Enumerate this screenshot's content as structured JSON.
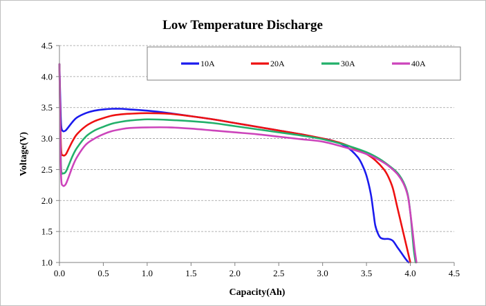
{
  "chart_data": {
    "type": "line",
    "title": "Low Temperature Discharge",
    "xlabel": "Capacity(Ah)",
    "ylabel": "Voltage(V)",
    "xlim": [
      0,
      4.5
    ],
    "ylim": [
      1.0,
      4.5
    ],
    "xticks": [
      "0.0",
      "0.5",
      "1.0",
      "1.5",
      "2.0",
      "2.5",
      "3.0",
      "3.5",
      "4.0",
      "4.5"
    ],
    "yticks": [
      "1.0",
      "1.5",
      "2.0",
      "2.5",
      "3.0",
      "3.5",
      "4.0",
      "4.5"
    ],
    "grid": "horizontal dashed",
    "legend_position": "top",
    "series": [
      {
        "name": "10A",
        "color": "#1a1aee",
        "points": [
          [
            0.0,
            4.2
          ],
          [
            0.01,
            3.6
          ],
          [
            0.02,
            3.2
          ],
          [
            0.04,
            3.12
          ],
          [
            0.07,
            3.13
          ],
          [
            0.1,
            3.18
          ],
          [
            0.15,
            3.27
          ],
          [
            0.2,
            3.34
          ],
          [
            0.3,
            3.41
          ],
          [
            0.4,
            3.45
          ],
          [
            0.5,
            3.47
          ],
          [
            0.6,
            3.48
          ],
          [
            0.7,
            3.48
          ],
          [
            0.8,
            3.47
          ],
          [
            1.0,
            3.45
          ],
          [
            1.25,
            3.41
          ],
          [
            1.5,
            3.36
          ],
          [
            1.75,
            3.31
          ],
          [
            2.0,
            3.25
          ],
          [
            2.25,
            3.19
          ],
          [
            2.5,
            3.13
          ],
          [
            2.75,
            3.07
          ],
          [
            3.0,
            3.0
          ],
          [
            3.1,
            2.97
          ],
          [
            3.2,
            2.92
          ],
          [
            3.3,
            2.84
          ],
          [
            3.4,
            2.7
          ],
          [
            3.45,
            2.58
          ],
          [
            3.5,
            2.4
          ],
          [
            3.55,
            2.1
          ],
          [
            3.58,
            1.8
          ],
          [
            3.6,
            1.6
          ],
          [
            3.63,
            1.47
          ],
          [
            3.66,
            1.4
          ],
          [
            3.7,
            1.38
          ],
          [
            3.75,
            1.38
          ],
          [
            3.8,
            1.35
          ],
          [
            3.85,
            1.25
          ],
          [
            3.9,
            1.15
          ],
          [
            3.95,
            1.05
          ],
          [
            3.98,
            1.0
          ]
        ]
      },
      {
        "name": "20A",
        "color": "#ee1111",
        "points": [
          [
            0.0,
            4.2
          ],
          [
            0.01,
            3.3
          ],
          [
            0.02,
            2.8
          ],
          [
            0.04,
            2.73
          ],
          [
            0.07,
            2.74
          ],
          [
            0.1,
            2.82
          ],
          [
            0.15,
            2.96
          ],
          [
            0.2,
            3.07
          ],
          [
            0.3,
            3.2
          ],
          [
            0.4,
            3.28
          ],
          [
            0.5,
            3.33
          ],
          [
            0.6,
            3.37
          ],
          [
            0.7,
            3.39
          ],
          [
            0.8,
            3.4
          ],
          [
            1.0,
            3.41
          ],
          [
            1.25,
            3.4
          ],
          [
            1.5,
            3.36
          ],
          [
            1.75,
            3.31
          ],
          [
            2.0,
            3.25
          ],
          [
            2.25,
            3.19
          ],
          [
            2.5,
            3.13
          ],
          [
            2.75,
            3.07
          ],
          [
            3.0,
            3.0
          ],
          [
            3.2,
            2.93
          ],
          [
            3.35,
            2.85
          ],
          [
            3.5,
            2.75
          ],
          [
            3.6,
            2.65
          ],
          [
            3.7,
            2.5
          ],
          [
            3.75,
            2.38
          ],
          [
            3.8,
            2.2
          ],
          [
            3.85,
            1.9
          ],
          [
            3.9,
            1.6
          ],
          [
            3.95,
            1.3
          ],
          [
            3.98,
            1.12
          ],
          [
            4.0,
            1.0
          ]
        ]
      },
      {
        "name": "30A",
        "color": "#22b06a",
        "points": [
          [
            0.0,
            4.2
          ],
          [
            0.01,
            3.1
          ],
          [
            0.02,
            2.5
          ],
          [
            0.04,
            2.44
          ],
          [
            0.07,
            2.46
          ],
          [
            0.1,
            2.55
          ],
          [
            0.15,
            2.72
          ],
          [
            0.2,
            2.85
          ],
          [
            0.3,
            3.03
          ],
          [
            0.4,
            3.13
          ],
          [
            0.5,
            3.19
          ],
          [
            0.6,
            3.24
          ],
          [
            0.7,
            3.27
          ],
          [
            0.8,
            3.29
          ],
          [
            1.0,
            3.31
          ],
          [
            1.25,
            3.3
          ],
          [
            1.5,
            3.28
          ],
          [
            1.75,
            3.25
          ],
          [
            2.0,
            3.2
          ],
          [
            2.25,
            3.15
          ],
          [
            2.5,
            3.1
          ],
          [
            2.75,
            3.05
          ],
          [
            3.0,
            2.99
          ],
          [
            3.25,
            2.9
          ],
          [
            3.5,
            2.78
          ],
          [
            3.65,
            2.67
          ],
          [
            3.75,
            2.57
          ],
          [
            3.85,
            2.45
          ],
          [
            3.92,
            2.3
          ],
          [
            3.97,
            2.1
          ],
          [
            4.0,
            1.8
          ],
          [
            4.02,
            1.5
          ],
          [
            4.04,
            1.2
          ],
          [
            4.06,
            1.0
          ]
        ]
      },
      {
        "name": "40A",
        "color": "#cc44bb",
        "points": [
          [
            0.0,
            4.2
          ],
          [
            0.01,
            3.0
          ],
          [
            0.02,
            2.35
          ],
          [
            0.04,
            2.24
          ],
          [
            0.07,
            2.26
          ],
          [
            0.1,
            2.36
          ],
          [
            0.15,
            2.55
          ],
          [
            0.2,
            2.7
          ],
          [
            0.3,
            2.9
          ],
          [
            0.4,
            3.0
          ],
          [
            0.5,
            3.07
          ],
          [
            0.6,
            3.12
          ],
          [
            0.7,
            3.15
          ],
          [
            0.8,
            3.17
          ],
          [
            1.0,
            3.18
          ],
          [
            1.25,
            3.18
          ],
          [
            1.5,
            3.16
          ],
          [
            1.75,
            3.13
          ],
          [
            2.0,
            3.1
          ],
          [
            2.25,
            3.07
          ],
          [
            2.5,
            3.03
          ],
          [
            2.75,
            2.99
          ],
          [
            3.0,
            2.95
          ],
          [
            3.25,
            2.86
          ],
          [
            3.5,
            2.75
          ],
          [
            3.65,
            2.65
          ],
          [
            3.75,
            2.56
          ],
          [
            3.85,
            2.43
          ],
          [
            3.92,
            2.28
          ],
          [
            3.97,
            2.08
          ],
          [
            4.0,
            1.8
          ],
          [
            4.03,
            1.45
          ],
          [
            4.05,
            1.2
          ],
          [
            4.07,
            1.0
          ]
        ]
      }
    ]
  }
}
